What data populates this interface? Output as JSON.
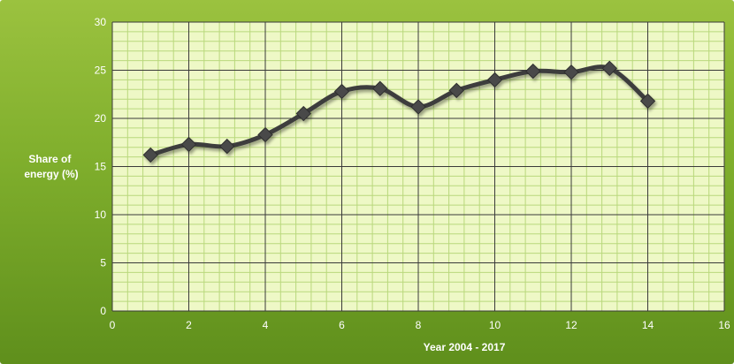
{
  "chart_data": {
    "type": "line",
    "xlabel": "Year 2004 - 2017",
    "ylabel": "Share of energy (%)",
    "ylabel_lines": [
      "Share of",
      "energy (%)"
    ],
    "xlim": [
      0,
      16
    ],
    "ylim": [
      0,
      30
    ],
    "x_ticks": [
      0,
      2,
      4,
      6,
      8,
      10,
      12,
      14,
      16
    ],
    "y_ticks": [
      0,
      5,
      10,
      15,
      20,
      25,
      30
    ],
    "grid": true,
    "legend": "none",
    "series": [
      {
        "x": [
          1,
          2,
          3,
          4,
          5,
          6,
          7,
          8,
          9,
          10,
          11,
          12,
          13,
          14
        ],
        "values": [
          16.2,
          17.3,
          17.1,
          18.3,
          20.5,
          22.8,
          23.1,
          21.2,
          22.9,
          24.0,
          24.9,
          24.8,
          25.2,
          21.8
        ],
        "color": "#3d3d3d",
        "marker": "diamond"
      }
    ],
    "colors": {
      "plot_background": "#eef8c6",
      "minor_grid": "#b9d87c",
      "major_grid": "#3a3a3a",
      "line": "#3d3d3d",
      "marker_fill": "#4a4a4a",
      "text": "#ffffff"
    }
  }
}
